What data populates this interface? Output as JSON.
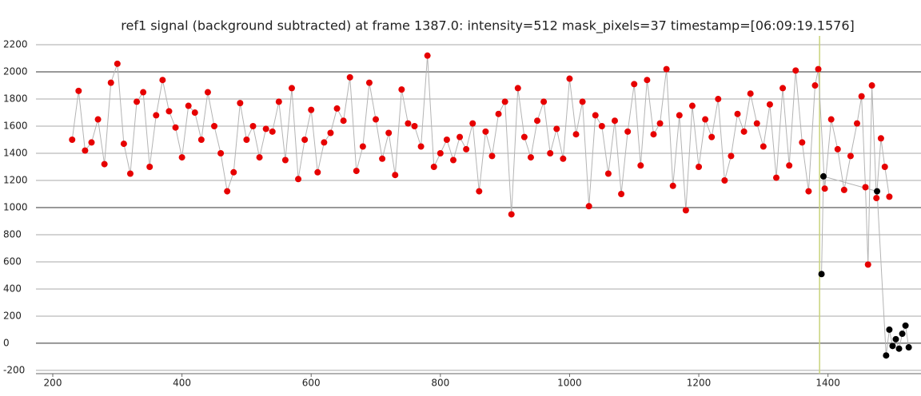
{
  "chart_data": {
    "type": "scatter",
    "title": "ref1 signal (background subtracted) at frame 1387.0: intensity=512 mask_pixels=37 timestamp=[06:09:19.1576]",
    "xlim": [
      174,
      1544
    ],
    "ylim": [
      -224,
      2265
    ],
    "xticks": [
      200,
      400,
      600,
      800,
      1000,
      1200,
      1400
    ],
    "yticks": [
      -200,
      0,
      200,
      400,
      600,
      800,
      1000,
      1200,
      1400,
      1600,
      1800,
      2000,
      2200
    ],
    "grid": true,
    "grid_major": [
      0,
      1000,
      2000
    ],
    "line_color": "#b4b4b4",
    "marker_x": 1387,
    "marker_color": "#c8d27a",
    "series": [
      {
        "color": "#e60000",
        "x": [
          230,
          240,
          250,
          260,
          270,
          280,
          290,
          300,
          310,
          320,
          330,
          340,
          350,
          360,
          370,
          380,
          390,
          400,
          410,
          420,
          430,
          440,
          450,
          460,
          470,
          480,
          490,
          500,
          510,
          520,
          530,
          540,
          550,
          560,
          570,
          580,
          590,
          600,
          610,
          620,
          630,
          640,
          650,
          660,
          670,
          680,
          690,
          700,
          710,
          720,
          730,
          740,
          750,
          760,
          770,
          780,
          790,
          800,
          810,
          820,
          830,
          840,
          850,
          860,
          870,
          880,
          890,
          900,
          910,
          920,
          930,
          940,
          950,
          960,
          970,
          980,
          990,
          1000,
          1010,
          1020,
          1030,
          1040,
          1050,
          1060,
          1070,
          1080,
          1090,
          1100,
          1110,
          1120,
          1130,
          1140,
          1150,
          1160,
          1170,
          1180,
          1190,
          1200,
          1210,
          1220,
          1230,
          1240,
          1250,
          1260,
          1270,
          1280,
          1290,
          1300,
          1310,
          1320,
          1330,
          1340,
          1350,
          1360,
          1370,
          1380,
          1385,
          1395,
          1405,
          1415,
          1425,
          1435,
          1445,
          1452,
          1458,
          1462,
          1468,
          1475,
          1482,
          1488,
          1495
        ],
        "values": [
          1500,
          1860,
          1420,
          1480,
          1650,
          1320,
          1920,
          2060,
          1470,
          1250,
          1780,
          1850,
          1300,
          1680,
          1940,
          1710,
          1590,
          1370,
          1750,
          1700,
          1500,
          1850,
          1600,
          1400,
          1120,
          1260,
          1770,
          1500,
          1600,
          1370,
          1580,
          1560,
          1780,
          1350,
          1880,
          1210,
          1500,
          1720,
          1260,
          1480,
          1550,
          1730,
          1640,
          1960,
          1270,
          1450,
          1920,
          1650,
          1360,
          1550,
          1240,
          1870,
          1620,
          1600,
          1450,
          2120,
          1300,
          1400,
          1500,
          1350,
          1520,
          1430,
          1620,
          1120,
          1560,
          1380,
          1690,
          1780,
          950,
          1880,
          1520,
          1370,
          1640,
          1780,
          1400,
          1580,
          1360,
          1950,
          1540,
          1780,
          1010,
          1680,
          1600,
          1250,
          1640,
          1100,
          1560,
          1910,
          1310,
          1940,
          1540,
          1620,
          2020,
          1160,
          1680,
          980,
          1750,
          1300,
          1650,
          1520,
          1800,
          1200,
          1380,
          1690,
          1560,
          1840,
          1620,
          1450,
          1760,
          1220,
          1880,
          1310,
          2010,
          1480,
          1120,
          1900,
          2020,
          1140,
          1650,
          1430,
          1130,
          1380,
          1620,
          1820,
          1150,
          580,
          1900,
          1070,
          1510,
          1300,
          1080
        ]
      },
      {
        "color": "#000000",
        "x": [
          1390,
          1393,
          1476,
          1490,
          1495,
          1500,
          1505,
          1510,
          1515,
          1520,
          1525
        ],
        "values": [
          510,
          1230,
          1120,
          -90,
          100,
          -20,
          30,
          -40,
          70,
          130,
          -30
        ]
      }
    ]
  }
}
